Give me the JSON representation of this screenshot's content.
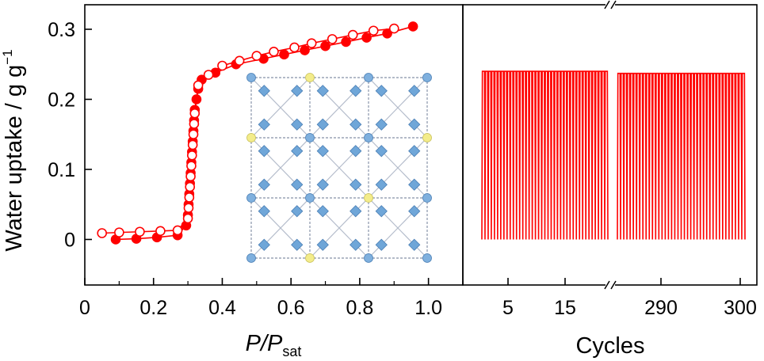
{
  "chart_data": [
    {
      "type": "scatter",
      "panel": "isotherm",
      "xlabel_main": "P",
      "xlabel_div": "/P",
      "xlabel_sub": "sat",
      "ylabel": "Water uptake / g g",
      "ylabel_sup": "−1",
      "xlim": [
        0,
        1.1
      ],
      "ylim": [
        -0.065,
        0.335
      ],
      "x_ticks": [
        0,
        0.2,
        0.4,
        0.6,
        0.8,
        1.0
      ],
      "x_tick_labels": [
        "0",
        "0.2",
        "0.4",
        "0.6",
        "0.8",
        "1.0"
      ],
      "y_ticks": [
        0,
        0.1,
        0.2,
        0.3
      ],
      "y_tick_labels": [
        "0",
        "0.1",
        "0.2",
        "0.3"
      ],
      "color": "#ff0000",
      "series": [
        {
          "marker": "filled",
          "x": [
            0.09,
            0.15,
            0.21,
            0.27,
            0.295,
            0.3,
            0.302,
            0.304,
            0.306,
            0.308,
            0.31,
            0.312,
            0.314,
            0.316,
            0.318,
            0.32,
            0.325,
            0.33,
            0.34,
            0.38,
            0.44,
            0.52,
            0.58,
            0.64,
            0.7,
            0.76,
            0.82,
            0.88,
            0.955
          ],
          "y": [
            0.0,
            0.001,
            0.003,
            0.006,
            0.02,
            0.035,
            0.05,
            0.065,
            0.08,
            0.095,
            0.11,
            0.125,
            0.14,
            0.155,
            0.17,
            0.185,
            0.2,
            0.215,
            0.228,
            0.238,
            0.25,
            0.258,
            0.264,
            0.27,
            0.276,
            0.282,
            0.288,
            0.294,
            0.304
          ]
        },
        {
          "marker": "open",
          "x": [
            0.05,
            0.1,
            0.16,
            0.22,
            0.27,
            0.3,
            0.302,
            0.304,
            0.306,
            0.308,
            0.31,
            0.312,
            0.314,
            0.316,
            0.318,
            0.32,
            0.33,
            0.36,
            0.4,
            0.45,
            0.5,
            0.55,
            0.61,
            0.66,
            0.72,
            0.78,
            0.84,
            0.9
          ],
          "y": [
            0.009,
            0.01,
            0.011,
            0.012,
            0.013,
            0.03,
            0.045,
            0.06,
            0.075,
            0.09,
            0.105,
            0.12,
            0.135,
            0.15,
            0.165,
            0.18,
            0.22,
            0.235,
            0.248,
            0.255,
            0.262,
            0.268,
            0.274,
            0.28,
            0.286,
            0.292,
            0.298,
            0.301
          ]
        }
      ]
    },
    {
      "type": "line",
      "panel": "cycling",
      "xlabel": "Cycles",
      "x_tick_labels": [
        "5",
        "15",
        "290",
        "300"
      ],
      "ylim": [
        -0.065,
        0.335
      ],
      "color": "#ff0000",
      "segments": [
        {
          "cycle_start": 1,
          "cycle_end": 20,
          "peak": 0.24,
          "trough": 0.0
        },
        {
          "cycle_start": 281,
          "cycle_end": 300,
          "peak": 0.237,
          "trough": 0.0
        }
      ],
      "axis_break": true
    }
  ]
}
